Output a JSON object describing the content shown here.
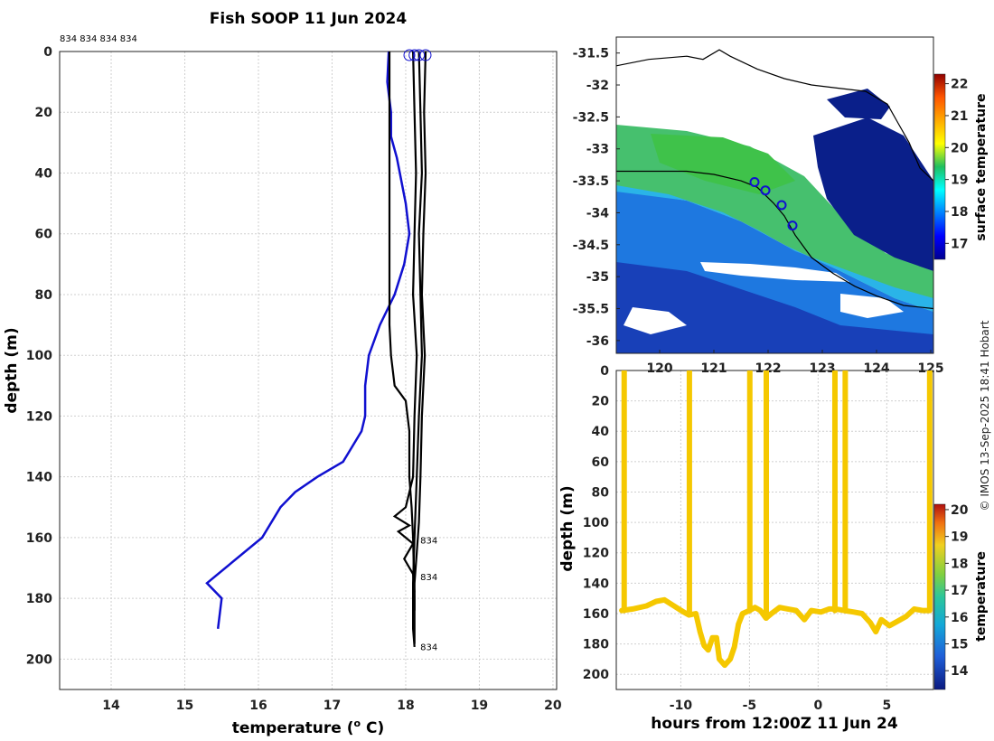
{
  "title": "Fish SOOP 11 Jun 2024",
  "watermark": "© IMOS 13-Sep-2025 18:41 Hobart",
  "colors": {
    "model": "#1010d0",
    "obs": "#000000",
    "track": "#1010d0",
    "depth_trace": "#f5d400"
  },
  "chart_data": [
    {
      "id": "profile",
      "type": "line",
      "xlabel": "temperature (",
      "xlabel_sup": "o",
      "xlabel_tail": " C)",
      "ylabel": "depth (m)",
      "xlim": [
        13.3,
        20.05
      ],
      "ylim": [
        210,
        0
      ],
      "xticks": [
        14,
        15,
        16,
        17,
        18,
        19,
        20
      ],
      "yticks": [
        0,
        20,
        40,
        60,
        80,
        100,
        120,
        140,
        160,
        180,
        200
      ],
      "top_labels": "834 834 834 834",
      "depth_labels": [
        {
          "text": "834",
          "x": 18.1,
          "y": 162
        },
        {
          "text": "834",
          "x": 18.1,
          "y": 174
        },
        {
          "text": "834",
          "x": 18.1,
          "y": 197
        }
      ],
      "surface_markers": [
        18.05,
        18.12,
        18.18,
        18.27
      ],
      "series": [
        {
          "name": "climatology",
          "color": "#1010d0",
          "points": [
            [
              17.77,
              0
            ],
            [
              17.75,
              10
            ],
            [
              17.8,
              20
            ],
            [
              17.8,
              28
            ],
            [
              17.88,
              35
            ],
            [
              18.0,
              50
            ],
            [
              18.05,
              60
            ],
            [
              17.98,
              70
            ],
            [
              17.85,
              80
            ],
            [
              17.65,
              90
            ],
            [
              17.5,
              100
            ],
            [
              17.45,
              110
            ],
            [
              17.45,
              120
            ],
            [
              17.4,
              125
            ],
            [
              17.15,
              135
            ],
            [
              16.8,
              140
            ],
            [
              16.5,
              145
            ],
            [
              16.3,
              150
            ],
            [
              16.05,
              160
            ],
            [
              15.3,
              175
            ],
            [
              15.5,
              180
            ],
            [
              15.45,
              190
            ]
          ]
        },
        {
          "name": "profile-1",
          "color": "#000000",
          "points": [
            [
              17.78,
              0
            ],
            [
              17.78,
              20
            ],
            [
              17.78,
              50
            ],
            [
              17.78,
              80
            ],
            [
              17.78,
              90
            ],
            [
              17.8,
              100
            ],
            [
              17.85,
              110
            ],
            [
              18.0,
              115
            ],
            [
              18.05,
              125
            ],
            [
              18.05,
              140
            ],
            [
              18.08,
              150
            ],
            [
              18.1,
              160
            ],
            [
              18.12,
              180
            ],
            [
              18.12,
              195
            ]
          ]
        },
        {
          "name": "profile-2",
          "color": "#000000",
          "points": [
            [
              18.1,
              0
            ],
            [
              18.12,
              20
            ],
            [
              18.14,
              40
            ],
            [
              18.12,
              60
            ],
            [
              18.1,
              80
            ],
            [
              18.15,
              100
            ],
            [
              18.12,
              120
            ],
            [
              18.1,
              140
            ],
            [
              18.0,
              150
            ],
            [
              17.85,
              153
            ],
            [
              18.05,
              156
            ],
            [
              17.9,
              158
            ],
            [
              18.1,
              162
            ],
            [
              17.98,
              167
            ],
            [
              18.1,
              172
            ],
            [
              18.12,
              178
            ]
          ]
        },
        {
          "name": "profile-3",
          "color": "#000000",
          "points": [
            [
              18.18,
              0
            ],
            [
              18.2,
              20
            ],
            [
              18.22,
              40
            ],
            [
              18.18,
              60
            ],
            [
              18.2,
              80
            ],
            [
              18.22,
              100
            ],
            [
              18.18,
              120
            ],
            [
              18.15,
              140
            ],
            [
              18.12,
              160
            ],
            [
              18.1,
              175
            ],
            [
              18.1,
              190
            ],
            [
              18.12,
              196
            ]
          ]
        },
        {
          "name": "profile-4",
          "color": "#000000",
          "points": [
            [
              18.27,
              0
            ],
            [
              18.25,
              20
            ],
            [
              18.27,
              40
            ],
            [
              18.24,
              60
            ],
            [
              18.22,
              80
            ],
            [
              18.26,
              100
            ],
            [
              18.22,
              120
            ],
            [
              18.2,
              140
            ],
            [
              18.18,
              155
            ],
            [
              18.15,
              165
            ],
            [
              18.12,
              175
            ],
            [
              18.12,
              184
            ]
          ]
        }
      ]
    },
    {
      "id": "map",
      "type": "heatmap",
      "colorbar_label": "surface temperature",
      "colorbar_range": [
        16.5,
        22.3
      ],
      "colorbar_ticks": [
        17,
        18,
        19,
        20,
        21,
        22
      ],
      "xlim": [
        119.2,
        125.05
      ],
      "ylim": [
        -36.2,
        -31.25
      ],
      "xticks": [
        120,
        121,
        122,
        123,
        124,
        125
      ],
      "yticks": [
        -31.5,
        -32,
        -32.5,
        -33,
        -33.5,
        -34,
        -34.5,
        -35,
        -35.5,
        -36
      ],
      "coastline": [
        [
          119.2,
          -31.7
        ],
        [
          119.8,
          -31.6
        ],
        [
          120.5,
          -31.55
        ],
        [
          120.8,
          -31.6
        ],
        [
          121.1,
          -31.45
        ],
        [
          121.3,
          -31.55
        ],
        [
          121.8,
          -31.75
        ],
        [
          122.3,
          -31.9
        ],
        [
          122.8,
          -32.0
        ],
        [
          123.3,
          -32.05
        ],
        [
          123.8,
          -32.1
        ],
        [
          124.2,
          -32.3
        ],
        [
          124.4,
          -32.6
        ],
        [
          124.6,
          -32.9
        ],
        [
          124.8,
          -33.3
        ],
        [
          125.05,
          -33.5
        ]
      ],
      "track": [
        [
          119.2,
          -33.35
        ],
        [
          119.8,
          -33.35
        ],
        [
          120.5,
          -33.35
        ],
        [
          121.0,
          -33.4
        ],
        [
          121.5,
          -33.5
        ],
        [
          121.8,
          -33.6
        ],
        [
          122.1,
          -33.85
        ],
        [
          122.3,
          -34.05
        ],
        [
          122.5,
          -34.35
        ],
        [
          122.8,
          -34.7
        ],
        [
          123.2,
          -34.95
        ],
        [
          123.6,
          -35.15
        ],
        [
          124.0,
          -35.3
        ],
        [
          124.5,
          -35.45
        ],
        [
          125.05,
          -35.5
        ]
      ],
      "track_markers": [
        [
          121.75,
          -33.52
        ],
        [
          121.95,
          -33.65
        ],
        [
          122.25,
          -33.88
        ],
        [
          122.45,
          -34.2
        ]
      ]
    },
    {
      "id": "timeseries",
      "type": "scatter",
      "xlabel": "hours from 12:00Z 11 Jun 24",
      "ylabel": "depth (m)",
      "colorbar_label": "temperature",
      "colorbar_range": [
        13.3,
        20.2
      ],
      "colorbar_ticks": [
        14,
        15,
        16,
        17,
        18,
        19,
        20
      ],
      "xlim": [
        -14.7,
        8.4
      ],
      "ylim": [
        210,
        0
      ],
      "xticks": [
        -10,
        -5,
        0,
        5
      ],
      "yticks": [
        0,
        20,
        40,
        60,
        80,
        100,
        120,
        140,
        160,
        180,
        200
      ],
      "series": [
        {
          "name": "bottom",
          "color": "#f5c800",
          "points": [
            [
              -14.3,
              158
            ],
            [
              -13.5,
              157
            ],
            [
              -12.5,
              155
            ],
            [
              -11.8,
              152
            ],
            [
              -11.2,
              151
            ],
            [
              -10.5,
              155
            ],
            [
              -9.8,
              159
            ],
            [
              -9.4,
              161
            ],
            [
              -8.9,
              160
            ],
            [
              -8.6,
              172
            ],
            [
              -8.3,
              181
            ],
            [
              -8.0,
              184
            ],
            [
              -7.7,
              176
            ],
            [
              -7.4,
              176
            ],
            [
              -7.2,
              190
            ],
            [
              -6.8,
              194
            ],
            [
              -6.4,
              190
            ],
            [
              -6.1,
              182
            ],
            [
              -5.8,
              167
            ],
            [
              -5.5,
              160
            ],
            [
              -5.0,
              158
            ],
            [
              -4.6,
              156
            ],
            [
              -4.2,
              158
            ],
            [
              -3.8,
              163
            ],
            [
              -3.4,
              160
            ],
            [
              -2.8,
              156
            ],
            [
              -2.2,
              157
            ],
            [
              -1.6,
              158
            ],
            [
              -1.0,
              164
            ],
            [
              -0.5,
              158
            ],
            [
              0.2,
              159
            ],
            [
              0.8,
              157
            ],
            [
              1.3,
              157
            ],
            [
              1.9,
              158
            ],
            [
              2.6,
              159
            ],
            [
              3.2,
              160
            ],
            [
              3.8,
              166
            ],
            [
              4.2,
              172
            ],
            [
              4.6,
              164
            ],
            [
              5.2,
              168
            ],
            [
              5.8,
              165
            ],
            [
              6.4,
              162
            ],
            [
              7.0,
              157
            ],
            [
              7.6,
              158
            ],
            [
              8.1,
              158
            ]
          ]
        },
        {
          "name": "casts",
          "color": "#f5c800",
          "segments": [
            [
              -14.1,
              -14.15,
              0,
              158
            ],
            [
              -9.4,
              -9.35,
              0,
              160
            ],
            [
              -5.0,
              -4.95,
              0,
              158
            ],
            [
              -3.8,
              -3.75,
              0,
              163
            ],
            [
              1.2,
              1.25,
              0,
              158
            ],
            [
              1.95,
              2.0,
              0,
              158
            ],
            [
              8.1,
              8.15,
              0,
              158
            ]
          ]
        }
      ]
    }
  ]
}
